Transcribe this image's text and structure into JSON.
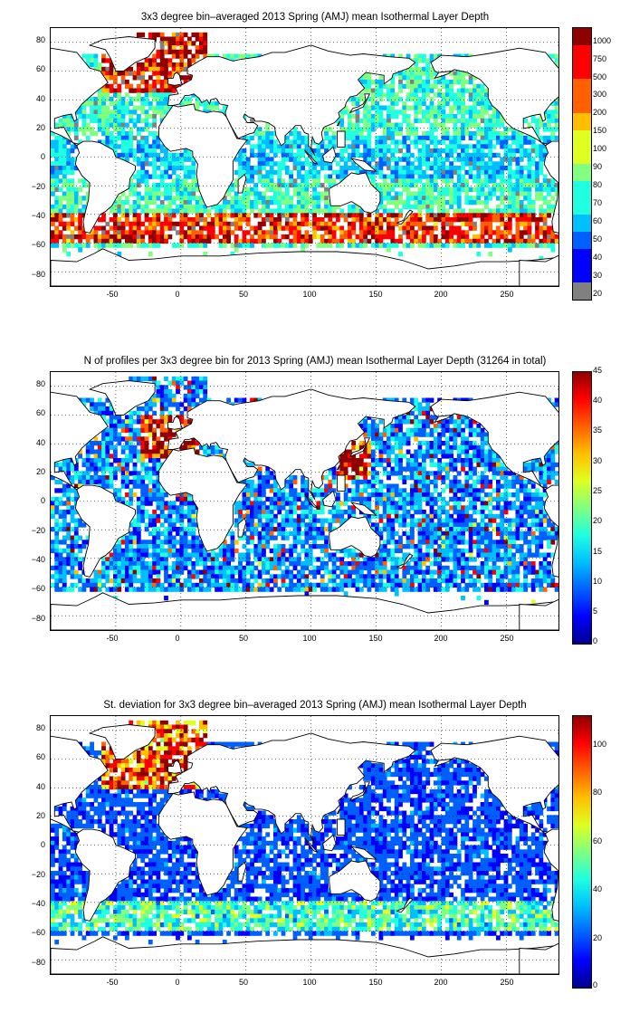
{
  "colors": {
    "jet": [
      "#00008f",
      "#0000ff",
      "#0060ff",
      "#00bfff",
      "#20ffdf",
      "#80ff80",
      "#dfff20",
      "#ffbf00",
      "#ff6000",
      "#ff0000",
      "#8f0000"
    ],
    "no_data_gray": "#808080"
  },
  "axes": {
    "x_ticks": [
      "-50",
      "0",
      "50",
      "100",
      "150",
      "200",
      "250"
    ],
    "y_ticks": [
      "80",
      "60",
      "40",
      "20",
      "0",
      "−20",
      "−40",
      "−60",
      "−80"
    ]
  },
  "panels": [
    {
      "title": "3x3 degree bin–averaged 2013 Spring (AMJ) mean Isothermal Layer Depth",
      "colorbar_labels": [
        "1000",
        "750",
        "500",
        "300",
        "200",
        "150",
        "100",
        "90",
        "80",
        "70",
        "60",
        "50",
        "40",
        "30",
        "20"
      ],
      "field": "depth"
    },
    {
      "title": "N of profiles per 3x3 degree bin for 2013 Spring (AMJ) mean Isothermal Layer Depth  (31264 in total)",
      "colorbar_labels": [
        "45",
        "40",
        "35",
        "30",
        "25",
        "20",
        "15",
        "10",
        "5",
        "0"
      ],
      "field": "count"
    },
    {
      "title": "St. deviation for 3x3 degree bin–averaged 2013 Spring (AMJ) mean Isothermal Layer Depth",
      "colorbar_labels": [
        "100",
        "80",
        "60",
        "40",
        "20",
        "0"
      ],
      "field": "std"
    }
  ]
}
